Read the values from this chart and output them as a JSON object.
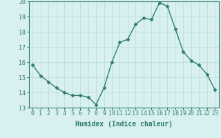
{
  "x": [
    0,
    1,
    2,
    3,
    4,
    5,
    6,
    7,
    8,
    9,
    10,
    11,
    12,
    13,
    14,
    15,
    16,
    17,
    18,
    19,
    20,
    21,
    22,
    23
  ],
  "y": [
    15.8,
    15.1,
    14.7,
    14.3,
    14.0,
    13.8,
    13.8,
    13.7,
    13.2,
    14.3,
    16.0,
    17.3,
    17.5,
    18.5,
    18.9,
    18.8,
    19.9,
    19.7,
    18.2,
    16.7,
    16.1,
    15.8,
    15.2,
    14.2
  ],
  "line_color": "#2e7d6e",
  "marker": "D",
  "marker_size": 2.5,
  "bg_color": "#d8f0f0",
  "grid_color": "#b8d8d8",
  "xlabel": "Humidex (Indice chaleur)",
  "ylim": [
    13,
    20
  ],
  "xlim_min": -0.5,
  "xlim_max": 23.5,
  "yticks": [
    13,
    14,
    15,
    16,
    17,
    18,
    19,
    20
  ],
  "xticks": [
    0,
    1,
    2,
    3,
    4,
    5,
    6,
    7,
    8,
    9,
    10,
    11,
    12,
    13,
    14,
    15,
    16,
    17,
    18,
    19,
    20,
    21,
    22,
    23
  ],
  "xlabel_fontsize": 7,
  "tick_fontsize": 6,
  "linewidth": 1.0
}
